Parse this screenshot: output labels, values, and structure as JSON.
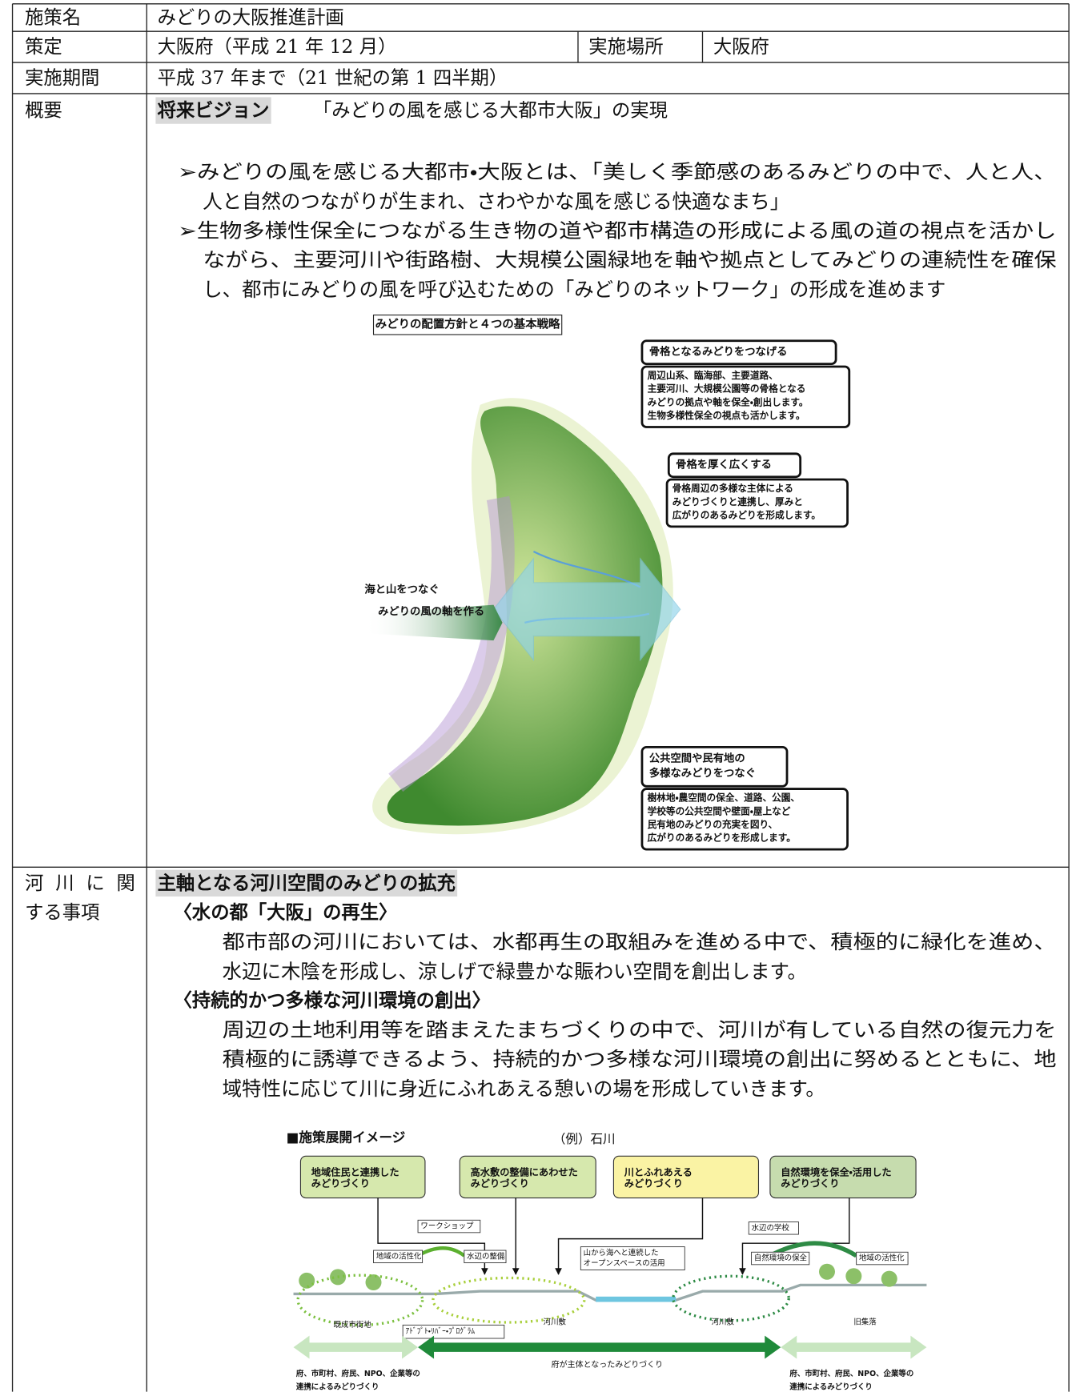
{
  "table": {
    "rows": [
      {
        "label": "施策名",
        "value": "みどりの大阪推進計画"
      },
      {
        "label": "策定",
        "value": "大阪府（平成 21 年 12 月）",
        "place_label": "実施場所",
        "place": "大阪府"
      },
      {
        "label": "実施期間",
        "value": "平成 37 年まで（21 世紀の第 1 四半期）"
      },
      {
        "label": "概要",
        "heading": "将来ビジョン",
        "heading_text": "「みどりの風を感じる大都市大阪」の実現",
        "bullets": [
          [
            "➢みどりの風を感じる大都市・大阪とは、「美しく季節感のあるみどりの中で、人と人、",
            "人と自然のつながりが生まれ、さわやかな風を感じる快適なまち」"
          ],
          [
            "➢生物多様性保全につながる生き物の道や都市構造の形成による風の道の視点を活かし",
            "ながら、主要河川や街路樹、大規模公園緑地を軸や拠点としてみどりの連続性を確保",
            "し、都市にみどりの風を呼び込むための「みどりのネットワーク」の形成を進めます"
          ]
        ],
        "figure": {
          "title": "みどりの配置方針と４つの基本戦略",
          "callouts": [
            {
              "title": [
                "骨格となるみどりをつなげる"
              ],
              "lines": [
                "周辺山系、臨海部、主要道路、",
                "主要河川、大規模公園等の骨格となる",
                "みどりの拠点や軸を保全・創出します。",
                "生物多様性保全の視点も活かします。"
              ]
            },
            {
              "title": [
                "骨格を厚く広くする"
              ],
              "lines": [
                "骨格周辺の多様な主体による",
                "みどりづくりと連携し、厚みと",
                "広がりのあるみどりを形成します。"
              ]
            },
            {
              "title": [
                "公共空間や民有地の",
                "多様なみどりをつなぐ"
              ],
              "lines": [
                "樹林地・農空間の保全、道路、公園、",
                "学校等の公共空間や壁面・屋上など",
                "民有地のみどりの充実を図り、",
                "広がりのあるみどりを形成します。"
              ]
            }
          ],
          "arrow_label": [
            "海と山をつなぐ",
            "みどりの風の軸を作る"
          ]
        }
      },
      {
        "label": [
          "河 川 に 関",
          "する事項"
        ],
        "heading": "主軸となる河川空間のみどりの拡充",
        "sections": [
          {
            "title": "〈水の都「大阪」の再生〉",
            "lines": [
              "都市部の河川においては、水都再生の取組みを進める中で、積極的に緑化を進め、",
              "水辺に木陰を形成し、涼しげで緑豊かな賑わい空間を創出します。"
            ]
          },
          {
            "title": "〈持続的かつ多様な河川環境の創出〉",
            "lines": [
              "周辺の土地利用等を踏まえたまちづくりの中で、河川が有している自然の復元力を",
              "積極的に誘導できるよう、持続的かつ多様な河川環境の創出に努めるとともに、地",
              "域特性に応じて川に身近にふれあえる憩いの場を形成していきます。"
            ]
          }
        ],
        "figure": {
          "title": "■施策展開イメージ",
          "example": "（例）石川",
          "boxes": [
            [
              "地域住民と連携した",
              "みどりづくり"
            ],
            [
              "高水敷の整備にあわせた",
              "みどりづくり"
            ],
            [
              "川とふれあえる",
              "みどりづくり"
            ],
            [
              "自然環境を保全・活用した",
              "みどりづくり"
            ]
          ],
          "labels": {
            "workshop": "ワークショップ",
            "revitalize_left": "地域の活性化",
            "waterside": "水辺の整備",
            "open_space": [
              "山から海へと連続した",
              "オープンスペースの活用"
            ],
            "school": "水辺の学校",
            "conservation": "自然環境の保全",
            "revitalize_right": "地域の活性化",
            "urban": "既成市街地",
            "adopt": "ｱﾄﾞﾌﾟﾄ・ﾘﾊﾞｰ・ﾌﾟﾛｸﾞﾗﾑ",
            "riverbed_left": "河川敷",
            "riverbed_right": "河川敷",
            "village": "旧集落"
          },
          "bottom_left": [
            "府、市町村、府民、NPO、企業等の",
            "連携によるみどりづくり"
          ],
          "bottom_center": "府が主体となったみどりづくり",
          "bottom_right": [
            "府、市町村、府民、NPO、企業等の",
            "連携によるみどりづくり"
          ]
        }
      }
    ]
  }
}
